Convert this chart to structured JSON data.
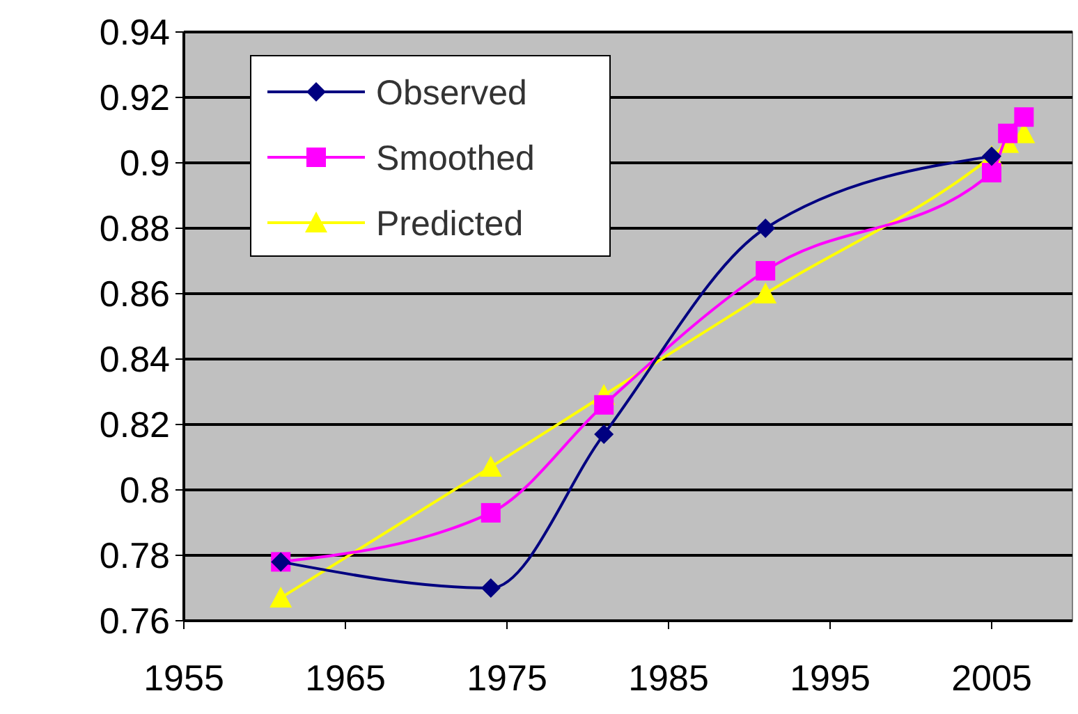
{
  "chart_data": {
    "type": "line",
    "x": [
      1961,
      1974,
      1981,
      1991,
      2005
    ],
    "xlim": [
      1955,
      2010
    ],
    "xticks": [
      1955,
      1965,
      1975,
      1985,
      1995,
      2005
    ],
    "ylim": [
      0.76,
      0.94
    ],
    "yticks": [
      0.76,
      0.78,
      0.8,
      0.82,
      0.84,
      0.86,
      0.88,
      0.9,
      0.92,
      0.94
    ],
    "grid": "y",
    "legend": "top left",
    "series": [
      {
        "name": "Observed",
        "color": "#000080",
        "marker": "diamond",
        "values": [
          0.778,
          0.77,
          0.817,
          0.88,
          0.902
        ]
      },
      {
        "name": "Smoothed",
        "color": "#ff00ff",
        "marker": "square",
        "x": [
          1961,
          1974,
          1981,
          1991,
          2005,
          2006,
          2007
        ],
        "values": [
          0.778,
          0.793,
          0.826,
          0.867,
          0.897,
          0.909,
          0.914
        ]
      },
      {
        "name": "Predicted",
        "color": "#ffff00",
        "marker": "triangle",
        "x": [
          1961,
          1974,
          1981,
          1991,
          2005,
          2006,
          2007
        ],
        "values": [
          0.767,
          0.807,
          0.829,
          0.86,
          0.902,
          0.906,
          0.909
        ]
      }
    ]
  }
}
